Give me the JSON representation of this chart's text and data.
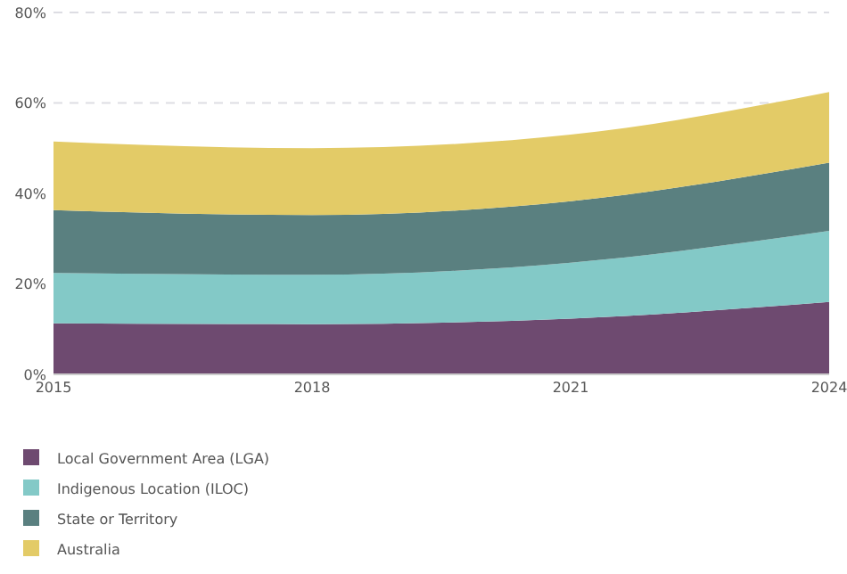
{
  "chart_data": {
    "type": "area",
    "stacked": true,
    "x": [
      2015,
      2018,
      2021,
      2024
    ],
    "xlim": [
      2015,
      2024
    ],
    "xticks": [
      2015,
      2018,
      2021,
      2024
    ],
    "ylim": [
      0,
      80
    ],
    "yticks": [
      {
        "value": 0,
        "label": "0%"
      },
      {
        "value": 20,
        "label": "20%"
      },
      {
        "value": 40,
        "label": "40%"
      },
      {
        "value": 60,
        "label": "60%"
      },
      {
        "value": 80,
        "label": "80%"
      }
    ],
    "grid": "y",
    "legend": "bottom",
    "series": [
      {
        "name": "Local Government Area (LGA)",
        "color": "#6e4a70",
        "values": [
          11.3,
          11.1,
          12.3,
          16.0
        ]
      },
      {
        "name": "Indigenous Location (ILOC)",
        "color": "#83c9c7",
        "values": [
          11.1,
          10.9,
          12.4,
          15.7
        ]
      },
      {
        "name": "State or Territory",
        "color": "#5a8080",
        "values": [
          13.9,
          13.2,
          13.6,
          15.1
        ]
      },
      {
        "name": "Australia",
        "color": "#e3cb67",
        "values": [
          15.2,
          14.8,
          14.7,
          15.6
        ]
      }
    ]
  }
}
